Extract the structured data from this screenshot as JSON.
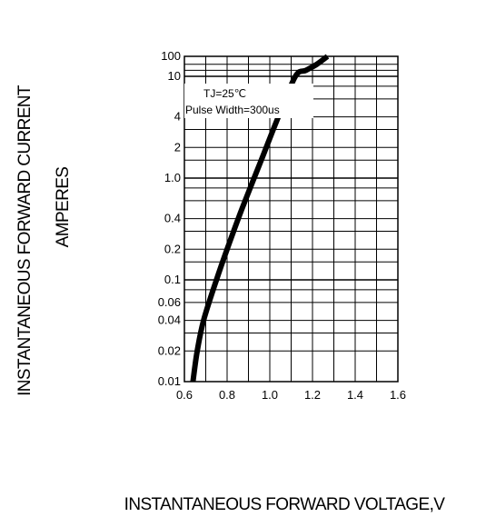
{
  "chart_data": {
    "type": "line",
    "title": "",
    "xlabel": "INSTANTANEOUS FORWARD VOLTAGE,V",
    "ylabel": "INSTANTANEOUS FORWARD CURRENT",
    "ylabel_line2": "AMPERES",
    "x_scale": "linear",
    "y_scale": "log",
    "xlim": [
      0.6,
      1.6
    ],
    "ylim": [
      0.01,
      100
    ],
    "x_ticks": [
      0.6,
      0.8,
      1.0,
      1.2,
      1.4,
      1.6
    ],
    "x_tick_labels": [
      "0.6",
      "0.8",
      "1.0",
      "1.2",
      "1.4",
      "1.6"
    ],
    "y_ticks": [
      0.01,
      0.02,
      0.04,
      0.06,
      0.1,
      0.2,
      0.4,
      1.0,
      2,
      4,
      10,
      100
    ],
    "y_tick_labels": [
      "0.01",
      "0.02",
      "0.04",
      "0.06",
      "0.1",
      "0.2",
      "0.4",
      "1.0",
      "2",
      "4",
      "10",
      "100"
    ],
    "grid": true,
    "annotations": [
      "TJ=25℃",
      "Pulse Width=300us"
    ],
    "series": [
      {
        "color": "#000000",
        "x": [
          0.64,
          0.66,
          0.69,
          0.75,
          0.8,
          0.87,
          0.96,
          1.04,
          1.12,
          1.17,
          1.22,
          1.27
        ],
        "y": [
          0.01,
          0.02,
          0.04,
          0.1,
          0.2,
          0.5,
          1.5,
          4,
          10,
          20,
          40,
          100
        ]
      }
    ]
  }
}
